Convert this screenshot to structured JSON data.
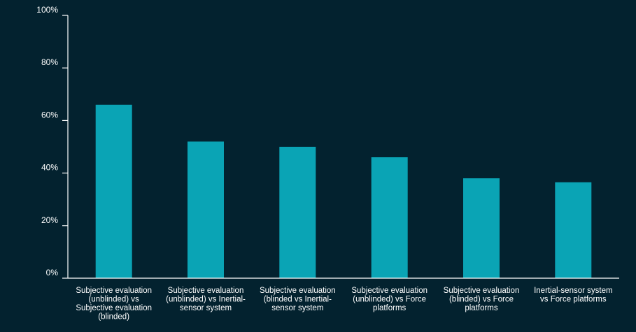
{
  "chart_data": {
    "type": "bar",
    "title": "",
    "xlabel": "",
    "ylabel": "",
    "categories": [
      [
        "Subjective evaluation",
        "(unblinded) vs",
        "Subjective evaluation",
        "(blinded)"
      ],
      [
        "Subjective evaluation",
        "(unblinded) vs Inertial-",
        "sensor system"
      ],
      [
        "Subjective evaluation",
        "(blinded vs Inertial-",
        "sensor system"
      ],
      [
        "Subjective evaluation",
        "(unblinded) vs Force",
        "platforms"
      ],
      [
        "Subjective evaluation",
        "(blinded) vs Force",
        "platforms"
      ],
      [
        "Inertial-sensor system",
        "vs Force platforms"
      ]
    ],
    "values": [
      66,
      52,
      50,
      46,
      38,
      36.5
    ],
    "ylim": [
      0,
      100
    ],
    "yticks": [
      0,
      20,
      40,
      60,
      80,
      100
    ],
    "ytick_labels": [
      "0%",
      "20%",
      "40%",
      "60%",
      "80%",
      "100%"
    ],
    "grid": false,
    "legend": "none",
    "colors": {
      "background": "#03222f",
      "bar": "#0aa4b5",
      "axis": "#ffffff",
      "text": "#ffffff"
    }
  }
}
